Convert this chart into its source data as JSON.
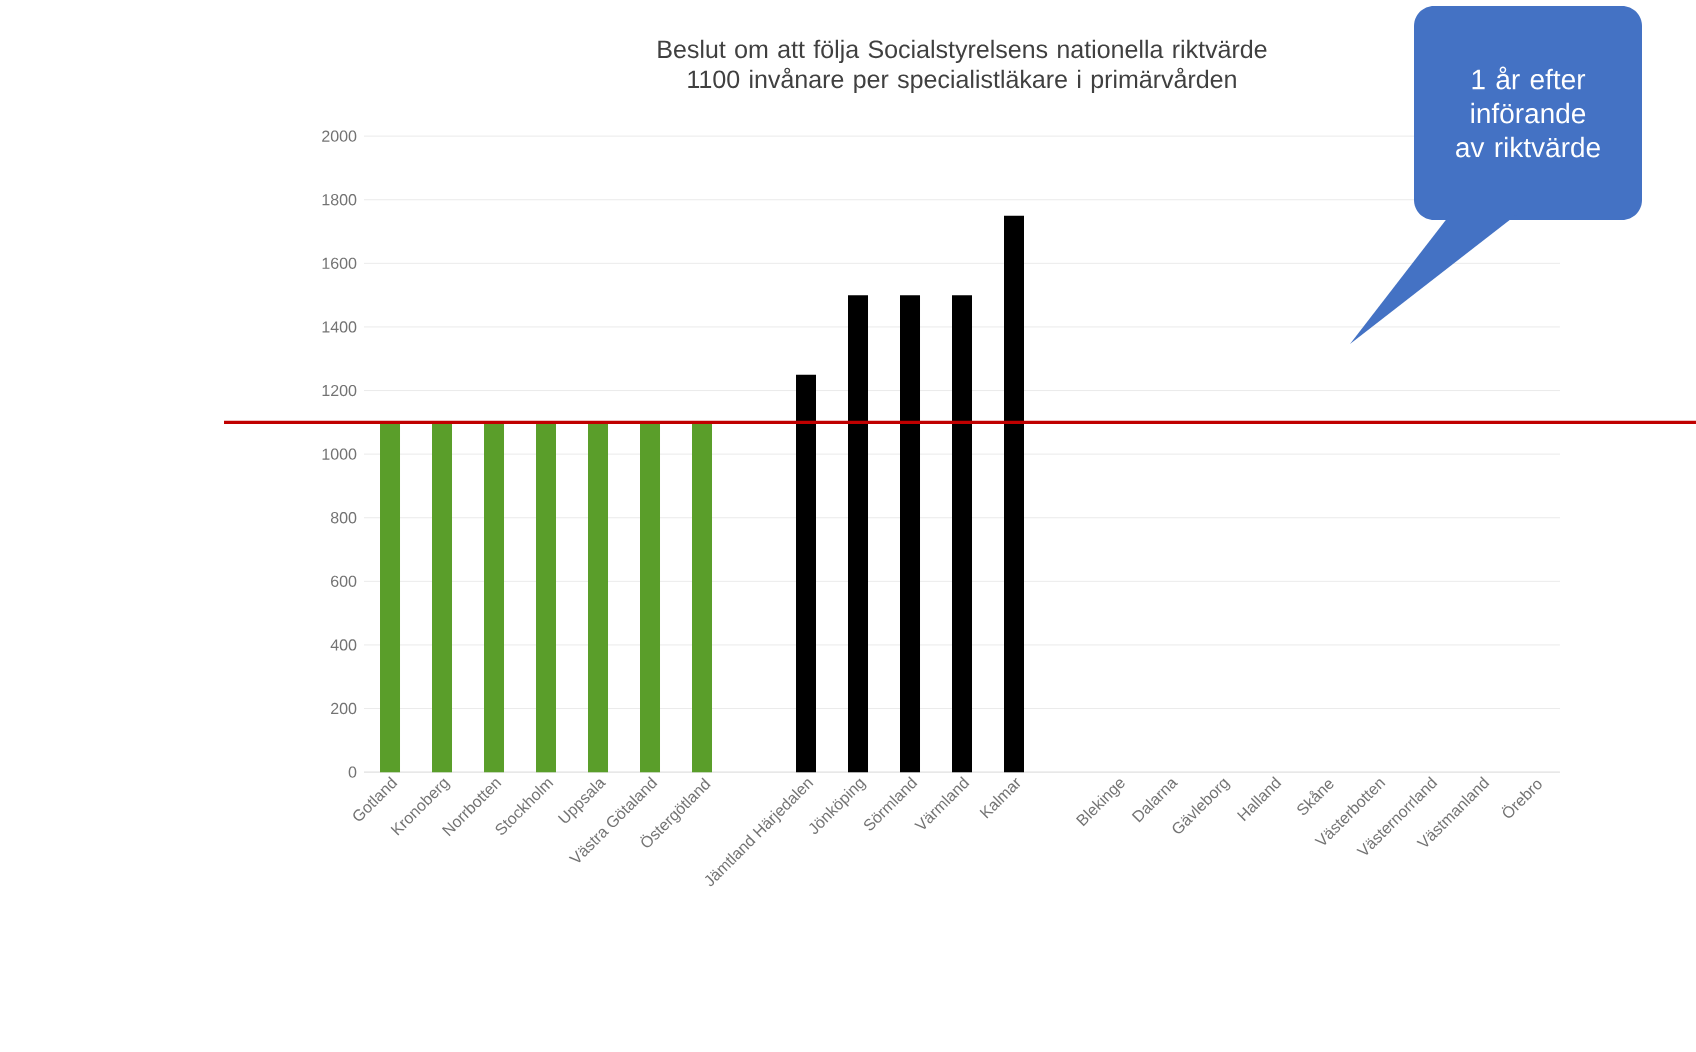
{
  "chart_data": {
    "type": "bar",
    "title": "Beslut om att följa Socialstyrelsens nationella riktvärde 1100 invånare per specialistläkare i primärvården",
    "categories": [
      "Gotland",
      "Kronoberg",
      "Norrbotten",
      "Stockholm",
      "Uppsala",
      "Västra Götaland",
      "Östergötland",
      null,
      "Jämtland Härjedalen",
      "Jönköping",
      "Sörmland",
      "Värmland",
      "Kalmar",
      null,
      "Blekinge",
      "Dalarna",
      "Gävleborg",
      "Halland",
      "Skåne",
      "Västerbotten",
      "Västernorrland",
      "Västmanland",
      "Örebro"
    ],
    "values": [
      1100,
      1100,
      1100,
      1100,
      1100,
      1100,
      1100,
      null,
      1250,
      1500,
      1500,
      1500,
      1750,
      null,
      null,
      null,
      null,
      null,
      null,
      null,
      null,
      null,
      null
    ],
    "colors": [
      "#5a9e2a",
      "#5a9e2a",
      "#5a9e2a",
      "#5a9e2a",
      "#5a9e2a",
      "#5a9e2a",
      "#5a9e2a",
      "#5a9e2a",
      "#000000",
      "#000000",
      "#000000",
      "#000000",
      "#000000",
      "#000000",
      "#000000",
      "#000000",
      "#000000",
      "#000000",
      "#000000",
      "#000000",
      "#000000",
      "#000000",
      "#000000"
    ],
    "ylim": [
      0,
      2000
    ],
    "yticks": [
      0,
      200,
      400,
      600,
      800,
      1000,
      1200,
      1400,
      1600,
      1800,
      2000
    ],
    "grid": "y",
    "ref_lines": [
      {
        "axis": "y",
        "value": 1100,
        "color": "#c00000"
      }
    ],
    "annotations": [
      "1 år efter införande av riktvärde"
    ]
  }
}
